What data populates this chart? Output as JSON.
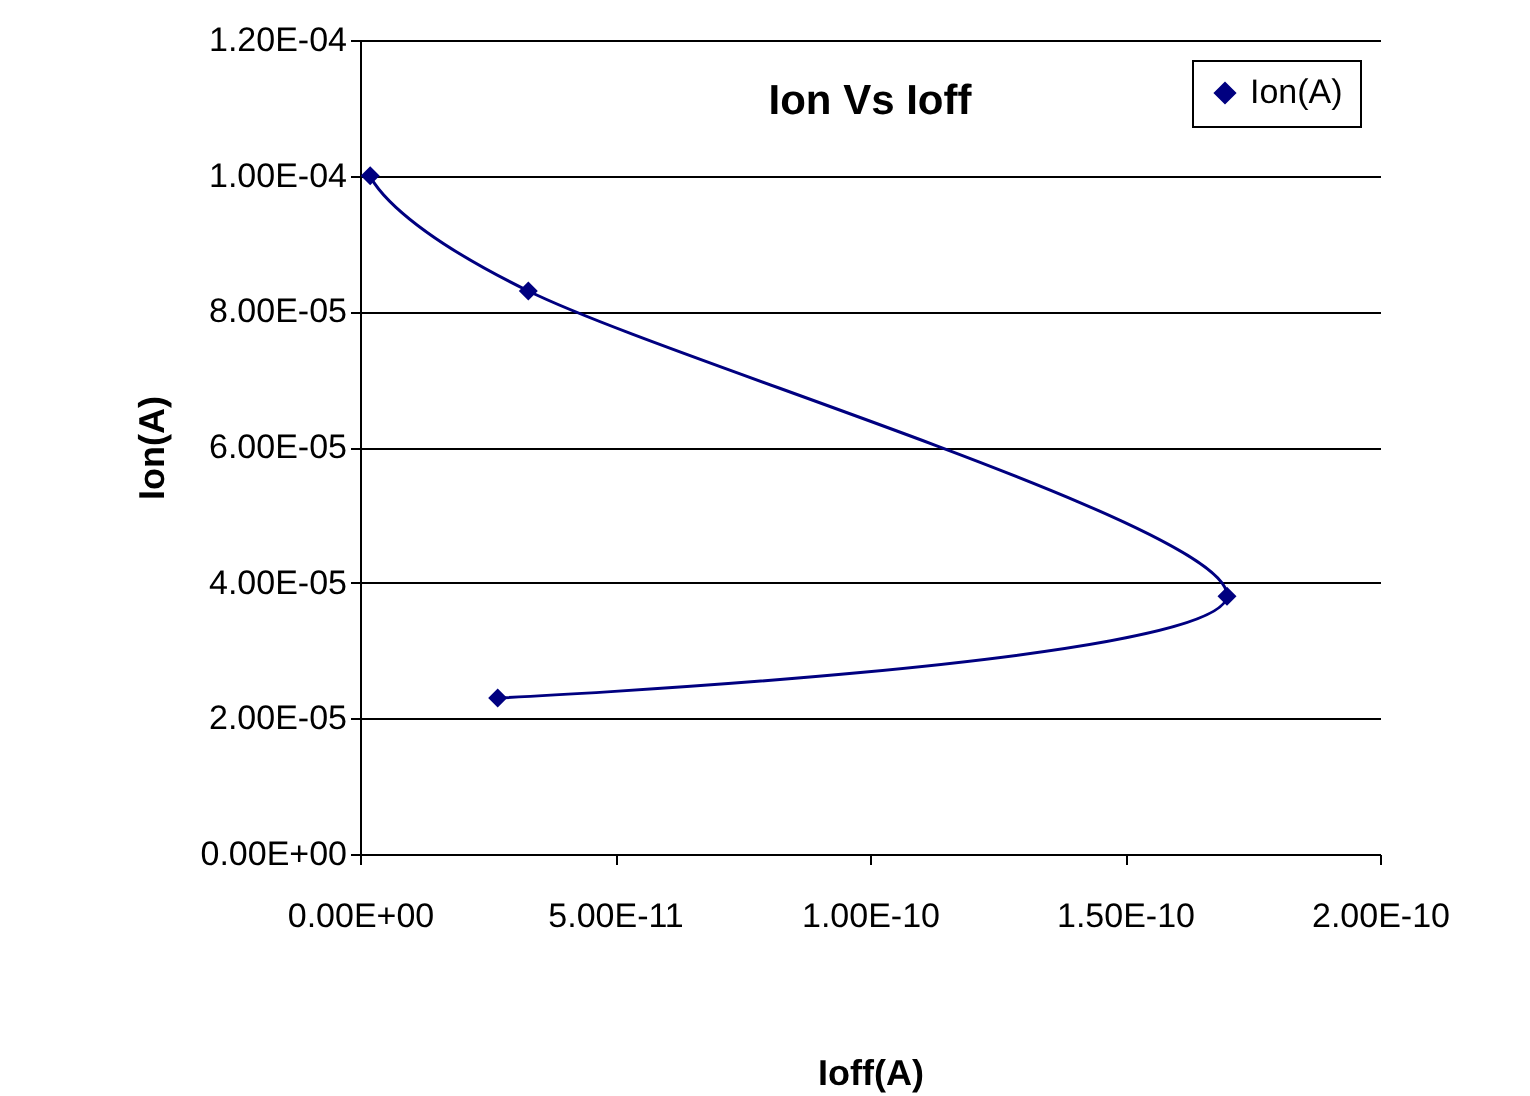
{
  "chart_data": {
    "type": "line",
    "title": "Ion Vs Ioff",
    "xlabel": "Ioff(A)",
    "ylabel": "Ion(A)",
    "x": [
      2e-12,
      3.3e-11,
      1.7e-10,
      2.7e-11
    ],
    "series": [
      {
        "name": "Ion(A)",
        "color": "#000080",
        "values": [
          0.0001,
          8.3e-05,
          3.8e-05,
          2.3e-05
        ]
      }
    ],
    "xlim": [
      0,
      2e-10
    ],
    "xticks": [
      {
        "value": 0,
        "label": "0.00E+00"
      },
      {
        "value": 5e-11,
        "label": "5.00E-11"
      },
      {
        "value": 1e-10,
        "label": "1.00E-10"
      },
      {
        "value": 1.5e-10,
        "label": "1.50E-10"
      },
      {
        "value": 2e-10,
        "label": "2.00E-10"
      }
    ],
    "ylim": [
      0,
      0.00012
    ],
    "yticks": [
      {
        "value": 0,
        "label": "0.00E+00"
      },
      {
        "value": 2e-05,
        "label": "2.00E-05"
      },
      {
        "value": 4e-05,
        "label": "4.00E-05"
      },
      {
        "value": 6e-05,
        "label": "6.00E-05"
      },
      {
        "value": 8e-05,
        "label": "8.00E-05"
      },
      {
        "value": 0.0001,
        "label": "1.00E-04"
      },
      {
        "value": 0.00012,
        "label": "1.20E-04"
      }
    ],
    "grid": "y",
    "legend": "top right",
    "marker": "diamond"
  }
}
